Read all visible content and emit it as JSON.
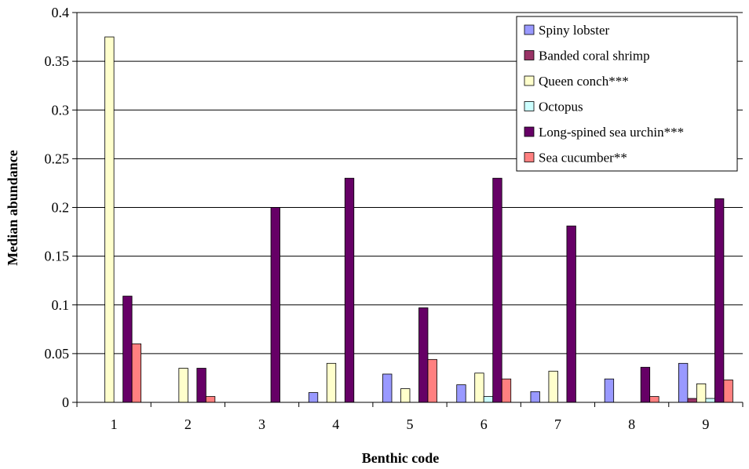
{
  "chart_data": {
    "type": "bar",
    "title": "",
    "xlabel": "Benthic code",
    "ylabel": "Median abundance",
    "ylim": [
      0,
      0.4
    ],
    "y_ticks": [
      0,
      0.05,
      0.1,
      0.15,
      0.2,
      0.25,
      0.3,
      0.35,
      0.4
    ],
    "y_tick_labels": [
      "0",
      "0.05",
      "0.1",
      "0.15",
      "0.2",
      "0.25",
      "0.3",
      "0.35",
      "0.4"
    ],
    "categories": [
      "1",
      "2",
      "3",
      "4",
      "5",
      "6",
      "7",
      "8",
      "9"
    ],
    "grid": true,
    "legend_position": "top-right",
    "series": [
      {
        "name": "Spiny lobster",
        "color": "#9999FF",
        "values": [
          0,
          0,
          0,
          0.01,
          0.029,
          0.018,
          0.011,
          0.024,
          0.04
        ]
      },
      {
        "name": "Banded coral shrimp",
        "color": "#993366",
        "values": [
          0,
          0,
          0,
          0,
          0,
          0,
          0,
          0,
          0.004
        ]
      },
      {
        "name": "Queen conch***",
        "color": "#FFFFCC",
        "values": [
          0.375,
          0.035,
          0,
          0.04,
          0.014,
          0.03,
          0.032,
          0,
          0.019
        ]
      },
      {
        "name": "Octopus",
        "color": "#CCFFFF",
        "values": [
          0,
          0,
          0,
          0,
          0,
          0.006,
          0,
          0,
          0.004
        ]
      },
      {
        "name": "Long-spined sea urchin***",
        "color": "#660066",
        "values": [
          0.109,
          0.035,
          0.2,
          0.23,
          0.097,
          0.23,
          0.181,
          0.036,
          0.209
        ]
      },
      {
        "name": "Sea cucumber**",
        "color": "#FF8080",
        "values": [
          0.06,
          0.006,
          0,
          0,
          0.044,
          0.024,
          0,
          0.006,
          0.023
        ]
      }
    ]
  }
}
